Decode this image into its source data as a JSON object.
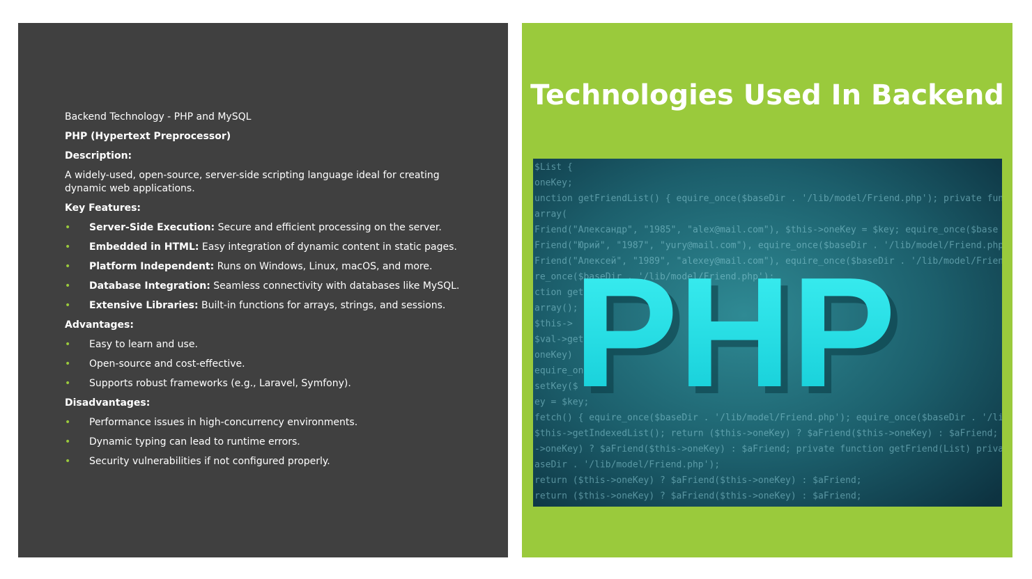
{
  "slide": {
    "title": "Technologies Used In Backend",
    "accent_color": "#9ACA3C",
    "panel_color": "#404040"
  },
  "content": {
    "heading": "Backend Technology - PHP and MySQL",
    "subheading": "PHP (Hypertext Preprocessor)",
    "description_label": "Description:",
    "description_text": "A widely-used, open-source, server-side scripting language  ideal for creating dynamic web applications.",
    "key_features_label": "Key Features:",
    "key_features": [
      {
        "term": "Server-Side Execution:",
        "text": " Secure and efficient processing on the server."
      },
      {
        "term": "Embedded in HTML:",
        "text": " Easy integration of dynamic content in static pages."
      },
      {
        "term": "Platform Independent:",
        "text": " Runs on Windows, Linux, macOS, and more."
      },
      {
        "term": "Database Integration:",
        "text": " Seamless connectivity with databases like MySQL."
      },
      {
        "term": "Extensive Libraries:",
        "text": " Built-in functions for arrays, strings, and sessions."
      }
    ],
    "advantages_label": "Advantages:",
    "advantages": [
      "Easy to learn and use.",
      "Open-source and cost-effective.",
      "Supports robust frameworks (e.g., Laravel, Symfony)."
    ],
    "disadvantages_label": "Disadvantages:",
    "disadvantages": [
      "Performance issues in high-concurrency environments.",
      "Dynamic typing can lead to runtime errors.",
      "Security vulnerabilities if not configured properly."
    ]
  },
  "image": {
    "logo_text": "PHP",
    "code_lines": [
      "$List {",
      "oneKey;",
      "unction getFriendList() { equire_once($baseDir . '/lib/model/Friend.php'); private function get",
      "array(",
      "Friend(\"Александр\", \"1985\", \"alex@mail.com\"), $this->oneKey = $key; equire_once($base",
      "Friend(\"Юрий\", \"1987\", \"yury@mail.com\"), equire_once($baseDir . '/lib/model/Friend.php')",
      "Friend(\"Алексей\", \"1989\", \"alexey@mail.com\"), equire_once($baseDir . '/lib/model/Friend",
      "re_once($baseDir . '/lib/model/Friend.php');",
      "ction get",
      "array();",
      "$this->",
      "$val->get",
      "oneKey)",
      "equire_on",
      "setKey($",
      "ey = $key;",
      "fetch() { equire_once($baseDir . '/lib/model/Friend.php'); equire_once($baseDir . '/lib/model",
      "$this->getIndexedList();    return ($this->oneKey) ? $aFriend($this->oneKey) : $aFriend;",
      "->oneKey) ? $aFriend($this->oneKey) : $aFriend; private function getFriend(List) private fun",
      "aseDir . '/lib/model/Friend.php');",
      "return ($this->oneKey) ? $aFriend($this->oneKey) : $aFriend;",
      "return ($this->oneKey) ? $aFriend($this->oneKey) : $aFriend;"
    ]
  }
}
